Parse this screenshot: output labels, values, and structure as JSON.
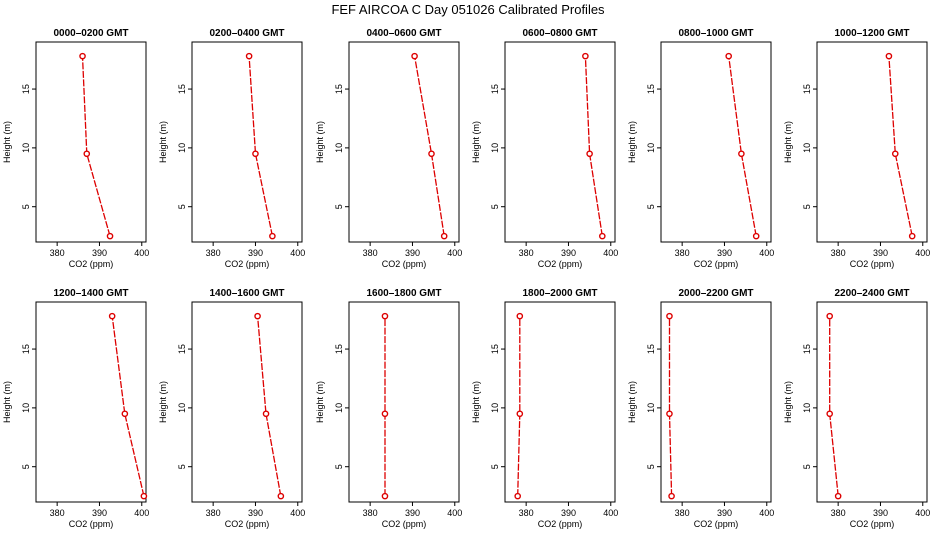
{
  "figure": {
    "title": "FEF AIRCOA C  Day 051026  Calibrated Profiles"
  },
  "chart_data": {
    "type": "line",
    "xlabel": "CO2 (ppm)",
    "ylabel": "Height (m)",
    "xlim": [
      375,
      401
    ],
    "ylim": [
      2,
      19
    ],
    "xticks": [
      380,
      390,
      400
    ],
    "yticks": [
      5,
      10,
      15
    ],
    "grid": false,
    "line_color": "#dd0000",
    "panels": [
      {
        "title": "0000–0200 GMT",
        "points": [
          {
            "x": 392.5,
            "y": 2.5
          },
          {
            "x": 387.0,
            "y": 9.5
          },
          {
            "x": 386.0,
            "y": 17.8
          }
        ]
      },
      {
        "title": "0200–0400 GMT",
        "points": [
          {
            "x": 394.0,
            "y": 2.5
          },
          {
            "x": 390.0,
            "y": 9.5
          },
          {
            "x": 388.5,
            "y": 17.8
          }
        ]
      },
      {
        "title": "0400–0600 GMT",
        "points": [
          {
            "x": 397.5,
            "y": 2.5
          },
          {
            "x": 394.5,
            "y": 9.5
          },
          {
            "x": 390.5,
            "y": 17.8
          }
        ]
      },
      {
        "title": "0600–0800 GMT",
        "points": [
          {
            "x": 398.0,
            "y": 2.5
          },
          {
            "x": 395.0,
            "y": 9.5
          },
          {
            "x": 394.0,
            "y": 17.8
          }
        ]
      },
      {
        "title": "0800–1000 GMT",
        "points": [
          {
            "x": 397.5,
            "y": 2.5
          },
          {
            "x": 394.0,
            "y": 9.5
          },
          {
            "x": 391.0,
            "y": 17.8
          }
        ]
      },
      {
        "title": "1000–1200 GMT",
        "points": [
          {
            "x": 397.5,
            "y": 2.5
          },
          {
            "x": 393.5,
            "y": 9.5
          },
          {
            "x": 392.0,
            "y": 17.8
          }
        ]
      },
      {
        "title": "1200–1400 GMT",
        "points": [
          {
            "x": 400.5,
            "y": 2.5
          },
          {
            "x": 396.0,
            "y": 9.5
          },
          {
            "x": 393.0,
            "y": 17.8
          }
        ]
      },
      {
        "title": "1400–1600 GMT",
        "points": [
          {
            "x": 396.0,
            "y": 2.5
          },
          {
            "x": 392.5,
            "y": 9.5
          },
          {
            "x": 390.5,
            "y": 17.8
          }
        ]
      },
      {
        "title": "1600–1800 GMT",
        "points": [
          {
            "x": 383.5,
            "y": 2.5
          },
          {
            "x": 383.5,
            "y": 9.5
          },
          {
            "x": 383.5,
            "y": 17.8
          }
        ]
      },
      {
        "title": "1800–2000 GMT",
        "points": [
          {
            "x": 378.0,
            "y": 2.5
          },
          {
            "x": 378.5,
            "y": 9.5
          },
          {
            "x": 378.5,
            "y": 17.8
          }
        ]
      },
      {
        "title": "2000–2200 GMT",
        "points": [
          {
            "x": 377.5,
            "y": 2.5
          },
          {
            "x": 377.0,
            "y": 9.5
          },
          {
            "x": 377.0,
            "y": 17.8
          }
        ]
      },
      {
        "title": "2200–2400 GMT",
        "points": [
          {
            "x": 380.0,
            "y": 2.5
          },
          {
            "x": 378.0,
            "y": 9.5
          },
          {
            "x": 378.0,
            "y": 17.8
          }
        ]
      }
    ]
  }
}
